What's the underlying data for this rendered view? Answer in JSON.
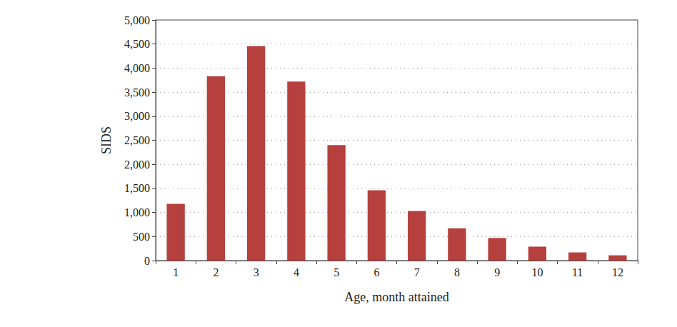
{
  "chart_data": {
    "type": "bar",
    "x_label": "Age, month attained",
    "y_label": "SIDS",
    "categories": [
      "1",
      "2",
      "3",
      "4",
      "5",
      "6",
      "7",
      "8",
      "9",
      "10",
      "11",
      "12"
    ],
    "values": [
      1180,
      3830,
      4460,
      3720,
      2400,
      1460,
      1030,
      670,
      470,
      290,
      170,
      110
    ],
    "color": "#b5403e",
    "ylim": [
      0,
      5000
    ],
    "yticks": [
      0,
      500,
      1000,
      1500,
      2000,
      2500,
      3000,
      3500,
      4000,
      4500,
      5000
    ],
    "grid": true
  }
}
